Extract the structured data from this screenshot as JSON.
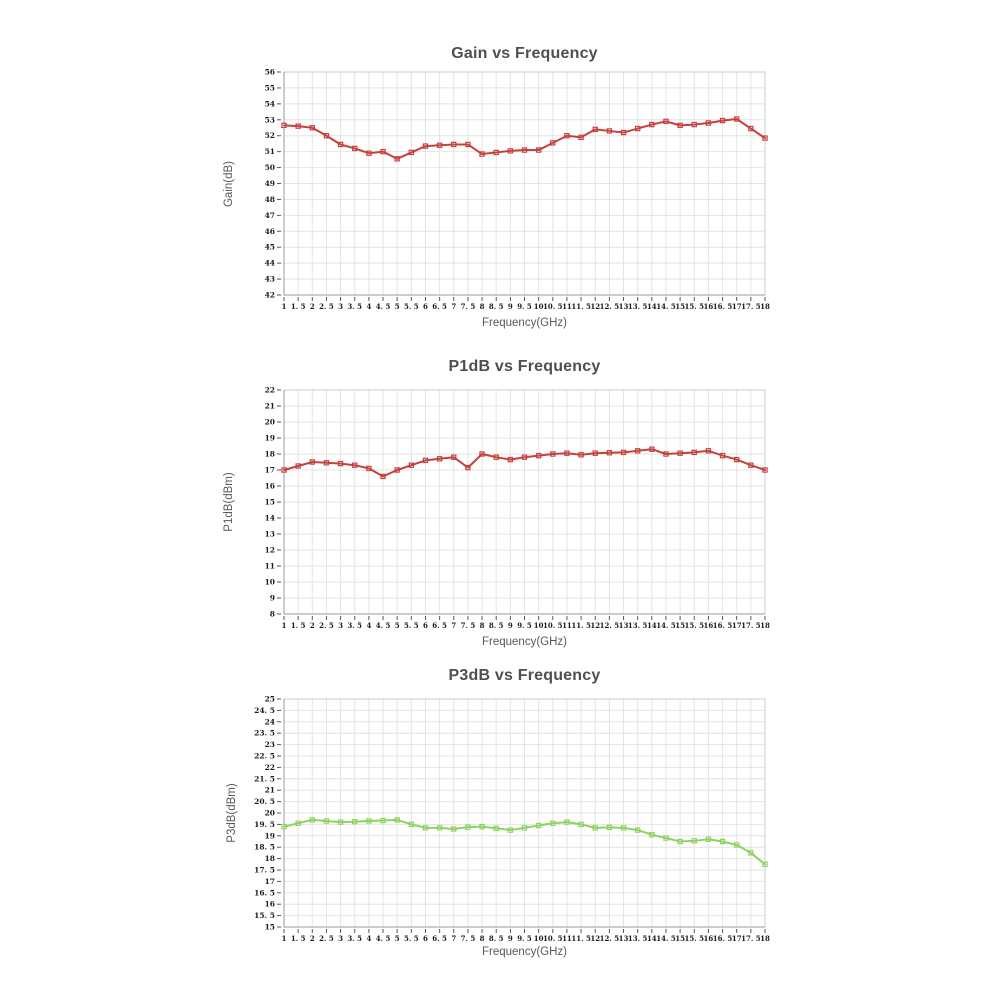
{
  "page": {
    "background": "#ffffff"
  },
  "chart_data": [
    {
      "id": "gain-vs-frequency",
      "type": "line",
      "title": "Gain vs Frequency",
      "xlabel": "Frequency(GHz)",
      "ylabel": "Gain(dB)",
      "legend": "none",
      "grid": true,
      "xlim": [
        1,
        18
      ],
      "ylim": [
        42,
        56
      ],
      "x": [
        1,
        1.5,
        2,
        2.5,
        3,
        3.5,
        4,
        4.5,
        5,
        5.5,
        6,
        6.5,
        7,
        7.5,
        8,
        8.5,
        9,
        9.5,
        10,
        10.5,
        11,
        11.5,
        12,
        12.5,
        13,
        13.5,
        14,
        14.5,
        15,
        15.5,
        16,
        16.5,
        17,
        17.5,
        18
      ],
      "xtick_labels": [
        "1",
        "1. 5",
        "2",
        "2. 5",
        "3",
        "3. 5",
        "4",
        "4. 5",
        "5",
        "5. 5",
        "6",
        "6. 5",
        "7",
        "7. 5",
        "8",
        "8. 5",
        "9",
        "9. 5",
        "10",
        "10. 5",
        "11",
        "11. 5",
        "12",
        "12. 5",
        "13",
        "13. 5",
        "14",
        "14. 5",
        "15",
        "15. 5",
        "16",
        "16. 5",
        "17",
        "17. 5",
        "18"
      ],
      "ytick_values": [
        42,
        43,
        44,
        45,
        46,
        47,
        48,
        49,
        50,
        51,
        52,
        53,
        54,
        55,
        56
      ],
      "ytick_labels": [
        "42",
        "43",
        "44",
        "45",
        "46",
        "47",
        "48",
        "49",
        "50",
        "51",
        "52",
        "53",
        "54",
        "55",
        "56"
      ],
      "series": [
        {
          "name": "Gain",
          "color": "#c5413c",
          "marker": "hollow-square",
          "values": [
            52.65,
            52.6,
            52.5,
            52.0,
            51.45,
            51.2,
            50.9,
            51.0,
            50.55,
            50.95,
            51.35,
            51.4,
            51.45,
            51.45,
            50.85,
            50.95,
            51.05,
            51.1,
            51.1,
            51.55,
            52.0,
            51.9,
            52.4,
            52.3,
            52.2,
            52.45,
            52.7,
            52.9,
            52.65,
            52.7,
            52.8,
            52.95,
            53.05,
            52.45,
            51.85
          ]
        }
      ]
    },
    {
      "id": "p1db-vs-frequency",
      "type": "line",
      "title": "P1dB vs Frequency",
      "xlabel": "Frequency(GHz)",
      "ylabel": "P1dB(dBm)",
      "legend": "none",
      "grid": true,
      "xlim": [
        1,
        18
      ],
      "ylim": [
        8,
        22
      ],
      "x": [
        1,
        1.5,
        2,
        2.5,
        3,
        3.5,
        4,
        4.5,
        5,
        5.5,
        6,
        6.5,
        7,
        7.5,
        8,
        8.5,
        9,
        9.5,
        10,
        10.5,
        11,
        11.5,
        12,
        12.5,
        13,
        13.5,
        14,
        14.5,
        15,
        15.5,
        16,
        16.5,
        17,
        17.5,
        18
      ],
      "xtick_labels": [
        "1",
        "1. 5",
        "2",
        "2. 5",
        "3",
        "3. 5",
        "4",
        "4. 5",
        "5",
        "5. 5",
        "6",
        "6. 5",
        "7",
        "7. 5",
        "8",
        "8. 5",
        "9",
        "9. 5",
        "10",
        "10. 5",
        "11",
        "11. 5",
        "12",
        "12. 5",
        "13",
        "13. 5",
        "14",
        "14. 5",
        "15",
        "15. 5",
        "16",
        "16. 5",
        "17",
        "17. 5",
        "18"
      ],
      "ytick_values": [
        8,
        9,
        10,
        11,
        12,
        13,
        14,
        15,
        16,
        17,
        18,
        19,
        20,
        21,
        22
      ],
      "ytick_labels": [
        "8",
        "9",
        "10",
        "11",
        "12",
        "13",
        "14",
        "15",
        "16",
        "17",
        "18",
        "19",
        "20",
        "21",
        "22"
      ],
      "series": [
        {
          "name": "P1dB",
          "color": "#c5413c",
          "marker": "hollow-square",
          "values": [
            17.0,
            17.25,
            17.5,
            17.45,
            17.4,
            17.3,
            17.1,
            16.6,
            17.0,
            17.3,
            17.6,
            17.7,
            17.8,
            17.15,
            18.0,
            17.8,
            17.65,
            17.8,
            17.9,
            18.0,
            18.05,
            17.95,
            18.05,
            18.08,
            18.1,
            18.2,
            18.3,
            18.0,
            18.05,
            18.1,
            18.2,
            17.9,
            17.65,
            17.3,
            17.0
          ]
        }
      ]
    },
    {
      "id": "p3db-vs-frequency",
      "type": "line",
      "title": "P3dB vs Frequency",
      "xlabel": "Frequency(GHz)",
      "ylabel": "P3dB(dBm)",
      "legend": "none",
      "grid": true,
      "xlim": [
        1,
        18
      ],
      "ylim": [
        15,
        25
      ],
      "x": [
        1,
        1.5,
        2,
        2.5,
        3,
        3.5,
        4,
        4.5,
        5,
        5.5,
        6,
        6.5,
        7,
        7.5,
        8,
        8.5,
        9,
        9.5,
        10,
        10.5,
        11,
        11.5,
        12,
        12.5,
        13,
        13.5,
        14,
        14.5,
        15,
        15.5,
        16,
        16.5,
        17,
        17.5,
        18
      ],
      "xtick_labels": [
        "1",
        "1. 5",
        "2",
        "2. 5",
        "3",
        "3. 5",
        "4",
        "4. 5",
        "5",
        "5. 5",
        "6",
        "6. 5",
        "7",
        "7. 5",
        "8",
        "8. 5",
        "9",
        "9. 5",
        "10",
        "10. 5",
        "11",
        "11. 5",
        "12",
        "12. 5",
        "13",
        "13. 5",
        "14",
        "14. 5",
        "15",
        "15. 5",
        "16",
        "16. 5",
        "17",
        "17. 5",
        "18"
      ],
      "ytick_values": [
        15,
        15.5,
        16,
        16.5,
        17,
        17.5,
        18,
        18.5,
        19,
        19.5,
        20,
        20.5,
        21,
        21.5,
        22,
        22.5,
        23,
        23.5,
        24,
        24.5,
        25
      ],
      "ytick_labels": [
        "15",
        "15. 5",
        "16",
        "16. 5",
        "17",
        "17. 5",
        "18",
        "18. 5",
        "19",
        "19. 5",
        "20",
        "20. 5",
        "21",
        "21. 5",
        "22",
        "22. 5",
        "23",
        "23. 5",
        "24",
        "24. 5",
        "25"
      ],
      "series": [
        {
          "name": "P3dB",
          "color": "#8dd35f",
          "marker": "hollow-square",
          "values": [
            19.4,
            19.55,
            19.7,
            19.65,
            19.6,
            19.62,
            19.65,
            19.67,
            19.7,
            19.5,
            19.35,
            19.35,
            19.3,
            19.38,
            19.4,
            19.33,
            19.25,
            19.35,
            19.45,
            19.55,
            19.6,
            19.5,
            19.35,
            19.37,
            19.35,
            19.25,
            19.05,
            18.9,
            18.75,
            18.78,
            18.85,
            18.75,
            18.6,
            18.25,
            17.75
          ]
        }
      ]
    }
  ],
  "style": {
    "grid_color": "#e4e4e4",
    "border_color": "#cccccc",
    "axis_color": "#999999",
    "tick_color": "#555555"
  }
}
